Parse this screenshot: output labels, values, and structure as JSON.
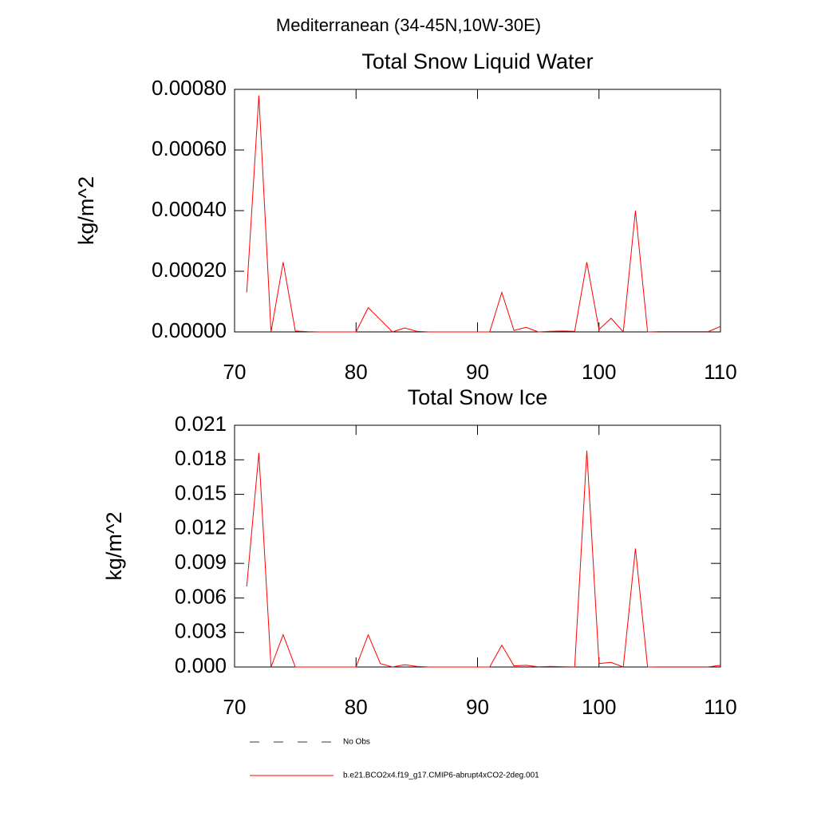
{
  "title": "Mediterranean (34-45N,10W-30E)",
  "legend": [
    {
      "name": "No Obs",
      "color": "#333355",
      "dash": true
    },
    {
      "name": "b.e21.BCO2x4.f19_g17.CMIP6-abrupt4xCO2-2deg.001",
      "color": "#ff0000",
      "dash": false
    }
  ],
  "chart_data": [
    {
      "type": "line",
      "title": "Total Snow Liquid Water",
      "ylabel": "kg/m^2",
      "color": "#ff0000",
      "x": [
        71,
        72,
        73,
        74,
        75,
        76,
        77,
        78,
        79,
        80,
        81,
        82,
        83,
        84,
        85,
        86,
        87,
        88,
        89,
        90,
        91,
        92,
        93,
        94,
        95,
        96,
        97,
        98,
        99,
        100,
        101,
        102,
        103,
        104,
        105,
        106,
        107,
        108,
        109,
        110
      ],
      "values": [
        0.00013,
        0.00078,
        0,
        0.00023,
        3e-06,
        1e-06,
        0,
        0,
        0,
        0,
        8e-05,
        4e-05,
        0,
        1.3e-05,
        2e-06,
        0,
        0,
        0,
        0,
        0,
        0,
        0.00013,
        5e-06,
        1.5e-05,
        0,
        2e-06,
        3e-06,
        2e-06,
        0.00023,
        8e-06,
        4.5e-05,
        0,
        0.0004,
        0,
        1e-06,
        1e-06,
        1e-06,
        1e-06,
        1e-06,
        1.8e-05
      ],
      "xlim": [
        70,
        110
      ],
      "xticks": [
        70,
        80,
        90,
        100,
        110
      ],
      "ylim": [
        0,
        0.0008
      ],
      "yticks": [
        {
          "value": 0,
          "label": "0.00000"
        },
        {
          "value": 0.0002,
          "label": "0.00020"
        },
        {
          "value": 0.0004,
          "label": "0.00040"
        },
        {
          "value": 0.0006,
          "label": "0.00060"
        },
        {
          "value": 0.0008,
          "label": "0.00080"
        }
      ]
    },
    {
      "type": "line",
      "title": "Total Snow Ice",
      "ylabel": "kg/m^2",
      "color": "#ff0000",
      "x": [
        71,
        72,
        73,
        74,
        75,
        76,
        77,
        78,
        79,
        80,
        81,
        82,
        83,
        84,
        85,
        86,
        87,
        88,
        89,
        90,
        91,
        92,
        93,
        94,
        95,
        96,
        97,
        98,
        99,
        100,
        101,
        102,
        103,
        104,
        105,
        106,
        107,
        108,
        109,
        110
      ],
      "values": [
        0.007,
        0.0186,
        0,
        0.0028,
        0,
        0,
        0,
        0,
        0,
        0,
        0.0028,
        0.0003,
        0,
        0.0002,
        5e-05,
        0,
        0,
        0,
        0,
        0,
        0,
        0.0019,
        0.0001,
        0.00015,
        2e-05,
        5e-05,
        3e-05,
        1e-05,
        0.0188,
        0.0003,
        0.0004,
        0,
        0.0103,
        0,
        1e-05,
        1e-05,
        1e-05,
        1e-05,
        1e-05,
        0.00015
      ],
      "xlim": [
        70,
        110
      ],
      "xticks": [
        70,
        80,
        90,
        100,
        110
      ],
      "ylim": [
        0,
        0.021
      ],
      "yticks": [
        {
          "value": 0,
          "label": "0.000"
        },
        {
          "value": 0.003,
          "label": "0.003"
        },
        {
          "value": 0.006,
          "label": "0.006"
        },
        {
          "value": 0.009,
          "label": "0.009"
        },
        {
          "value": 0.012,
          "label": "0.012"
        },
        {
          "value": 0.015,
          "label": "0.015"
        },
        {
          "value": 0.018,
          "label": "0.018"
        },
        {
          "value": 0.021,
          "label": "0.021"
        }
      ]
    }
  ]
}
